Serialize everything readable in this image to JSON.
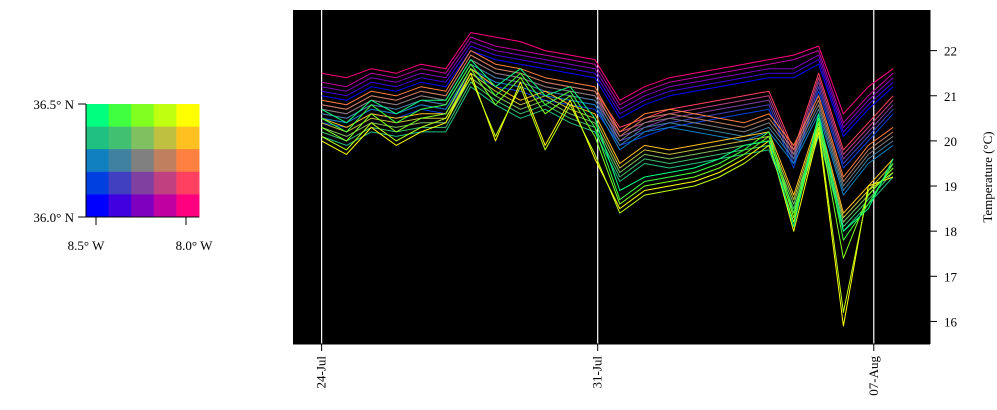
{
  "chart_data": [
    {
      "type": "heatmap",
      "description_role": "colour key grid",
      "rows": 5,
      "cols": 5,
      "cells": [
        [
          "#00ff7f",
          "#40ff40",
          "#80ff20",
          "#c0ff10",
          "#ffff00"
        ],
        [
          "#20c080",
          "#40c070",
          "#80c060",
          "#c0c040",
          "#ffc020"
        ],
        [
          "#1080c0",
          "#4080a0",
          "#808080",
          "#c08060",
          "#ff8040"
        ],
        [
          "#0040e0",
          "#4040c0",
          "#8040a0",
          "#c04080",
          "#ff4060"
        ],
        [
          "#0000ff",
          "#4000e0",
          "#8000c0",
          "#c000a0",
          "#ff0080"
        ]
      ],
      "x_ticks": [
        "8.5° W",
        "8.0° W"
      ],
      "y_ticks": [
        "36.5° N",
        "36.0° N"
      ]
    },
    {
      "type": "line",
      "background": "#000000",
      "ylabel": "Temperature (°C)",
      "ylim": [
        15.5,
        22.9
      ],
      "y_ticks": [
        16,
        17,
        18,
        19,
        20,
        21,
        22
      ],
      "x_range_days": [
        -1,
        22
      ],
      "x_ticks": [
        {
          "label": "24-Jul",
          "day": 0
        },
        {
          "label": "31-Jul",
          "day": 10
        },
        {
          "label": "07-Aug",
          "day": 20
        }
      ],
      "x_days": [
        0,
        0.9,
        1.8,
        2.7,
        3.6,
        4.5,
        5.4,
        6.3,
        7.2,
        8.1,
        9,
        9.9,
        10.8,
        11.7,
        12.6,
        13.5,
        14.4,
        15.3,
        16.2,
        17.1,
        18,
        18.9,
        19.8,
        20.7
      ],
      "series": [
        {
          "color": "#ff0080",
          "values": [
            21.5,
            21.4,
            21.6,
            21.5,
            21.7,
            21.6,
            22.4,
            22.3,
            22.2,
            22.0,
            21.9,
            21.8,
            20.9,
            21.2,
            21.4,
            21.5,
            21.6,
            21.7,
            21.8,
            21.9,
            22.1,
            20.6,
            21.2,
            21.6
          ]
        },
        {
          "color": "#c000a0",
          "values": [
            21.3,
            21.2,
            21.5,
            21.4,
            21.6,
            21.5,
            22.3,
            22.1,
            22.0,
            21.9,
            21.8,
            21.7,
            20.8,
            21.1,
            21.3,
            21.4,
            21.5,
            21.6,
            21.7,
            21.8,
            22.0,
            20.4,
            21.0,
            21.5
          ]
        },
        {
          "color": "#8000c0",
          "values": [
            21.2,
            21.1,
            21.4,
            21.3,
            21.5,
            21.4,
            22.2,
            22.0,
            21.9,
            21.8,
            21.7,
            21.6,
            20.7,
            21.0,
            21.2,
            21.3,
            21.4,
            21.5,
            21.6,
            21.6,
            21.9,
            20.3,
            20.9,
            21.4
          ]
        },
        {
          "color": "#4000e0",
          "values": [
            21.1,
            21.0,
            21.3,
            21.2,
            21.4,
            21.3,
            22.1,
            21.9,
            21.8,
            21.7,
            21.6,
            21.5,
            20.6,
            20.9,
            21.1,
            21.2,
            21.3,
            21.4,
            21.5,
            21.5,
            21.8,
            20.2,
            20.8,
            21.3
          ]
        },
        {
          "color": "#0000ff",
          "values": [
            21.0,
            20.9,
            21.2,
            21.1,
            21.3,
            21.2,
            22.0,
            21.8,
            21.7,
            21.6,
            21.5,
            21.4,
            20.5,
            20.8,
            21.0,
            21.1,
            21.2,
            21.3,
            21.4,
            21.4,
            21.7,
            20.1,
            20.7,
            21.2
          ]
        },
        {
          "color": "#ff4060",
          "values": [
            20.8,
            20.7,
            21.0,
            20.9,
            21.1,
            21.0,
            21.9,
            21.6,
            21.5,
            21.3,
            21.2,
            21.1,
            20.3,
            20.5,
            20.7,
            20.8,
            20.9,
            21.0,
            21.1,
            19.8,
            21.5,
            19.8,
            20.4,
            21.0
          ]
        },
        {
          "color": "#c04080",
          "values": [
            20.7,
            20.6,
            20.9,
            20.8,
            21.0,
            20.9,
            21.8,
            21.5,
            21.4,
            21.2,
            21.1,
            21.0,
            20.2,
            20.4,
            20.6,
            20.7,
            20.8,
            20.9,
            21.0,
            19.7,
            21.4,
            19.7,
            20.3,
            20.9
          ]
        },
        {
          "color": "#8040a0",
          "values": [
            20.6,
            20.5,
            20.8,
            20.7,
            20.9,
            20.8,
            21.7,
            21.4,
            21.3,
            21.1,
            21.0,
            20.9,
            20.1,
            20.3,
            20.5,
            20.6,
            20.7,
            20.8,
            20.9,
            19.6,
            21.3,
            19.6,
            20.2,
            20.8
          ]
        },
        {
          "color": "#4040c0",
          "values": [
            20.5,
            20.4,
            20.7,
            20.6,
            20.8,
            20.7,
            21.6,
            21.3,
            21.2,
            21.0,
            20.9,
            20.8,
            20.0,
            20.2,
            20.4,
            20.5,
            20.6,
            20.7,
            20.8,
            19.5,
            21.2,
            19.5,
            20.1,
            20.7
          ]
        },
        {
          "color": "#0040e0",
          "values": [
            20.4,
            20.3,
            20.6,
            20.5,
            20.7,
            20.6,
            21.5,
            21.2,
            21.1,
            20.9,
            20.8,
            20.7,
            19.9,
            20.1,
            20.3,
            20.4,
            20.5,
            20.6,
            20.7,
            19.4,
            21.1,
            19.4,
            20.0,
            20.6
          ]
        },
        {
          "color": "#ff8040",
          "values": [
            20.9,
            20.8,
            21.1,
            21.0,
            21.2,
            21.1,
            22.0,
            21.7,
            21.6,
            21.4,
            21.3,
            21.2,
            20.2,
            20.6,
            20.7,
            20.6,
            20.5,
            20.4,
            20.6,
            19.9,
            21.0,
            19.2,
            19.9,
            20.3
          ]
        },
        {
          "color": "#c08060",
          "values": [
            20.8,
            20.7,
            21.0,
            20.9,
            21.1,
            21.0,
            21.9,
            21.6,
            21.5,
            21.3,
            21.2,
            21.1,
            20.1,
            20.5,
            20.6,
            20.5,
            20.4,
            20.3,
            20.5,
            19.8,
            20.9,
            19.1,
            19.8,
            20.2
          ]
        },
        {
          "color": "#808080",
          "values": [
            20.7,
            20.6,
            20.9,
            20.8,
            21.0,
            20.9,
            21.8,
            21.5,
            21.4,
            21.2,
            21.1,
            21.0,
            20.0,
            20.4,
            20.5,
            20.4,
            20.3,
            20.2,
            20.4,
            19.7,
            20.8,
            19.0,
            19.7,
            20.1
          ]
        },
        {
          "color": "#4080a0",
          "values": [
            20.6,
            20.5,
            20.8,
            20.7,
            20.9,
            20.8,
            21.7,
            21.4,
            21.3,
            21.1,
            21.0,
            20.9,
            19.9,
            20.3,
            20.4,
            20.3,
            20.2,
            20.1,
            20.3,
            19.6,
            20.7,
            18.9,
            19.6,
            20.0
          ]
        },
        {
          "color": "#1080c0",
          "values": [
            20.5,
            20.4,
            20.7,
            20.6,
            20.8,
            20.7,
            21.6,
            21.3,
            21.2,
            21.0,
            20.9,
            20.8,
            19.8,
            20.2,
            20.3,
            20.2,
            20.1,
            20.0,
            20.2,
            19.5,
            20.6,
            18.8,
            19.5,
            19.9
          ]
        },
        {
          "color": "#ffc020",
          "values": [
            20.5,
            20.3,
            20.6,
            20.5,
            20.6,
            20.6,
            21.6,
            21.2,
            20.9,
            21.1,
            20.8,
            20.6,
            19.5,
            19.9,
            19.8,
            19.9,
            20.0,
            20.1,
            20.2,
            18.8,
            20.5,
            18.4,
            19.0,
            19.6
          ]
        },
        {
          "color": "#c0c040",
          "values": [
            20.4,
            20.2,
            20.5,
            20.4,
            20.5,
            20.5,
            21.5,
            21.1,
            20.8,
            21.0,
            20.7,
            20.5,
            19.4,
            19.8,
            19.7,
            19.8,
            19.9,
            20.0,
            20.1,
            18.7,
            20.4,
            18.3,
            18.9,
            19.5
          ]
        },
        {
          "color": "#80c060",
          "values": [
            20.3,
            20.1,
            20.4,
            20.3,
            20.4,
            20.4,
            21.4,
            21.0,
            20.7,
            20.9,
            20.6,
            20.4,
            19.3,
            19.7,
            19.6,
            19.7,
            19.8,
            19.9,
            20.0,
            18.6,
            20.3,
            18.2,
            18.8,
            19.4
          ]
        },
        {
          "color": "#40c070",
          "values": [
            20.2,
            20.0,
            20.3,
            20.2,
            20.3,
            20.3,
            21.3,
            20.9,
            20.6,
            20.8,
            20.5,
            20.3,
            19.2,
            19.6,
            19.5,
            19.6,
            19.7,
            19.8,
            19.9,
            18.5,
            20.2,
            18.1,
            18.7,
            19.3
          ]
        },
        {
          "color": "#20c080",
          "values": [
            20.1,
            19.9,
            20.2,
            20.1,
            20.2,
            20.2,
            21.2,
            20.8,
            20.5,
            20.7,
            20.4,
            20.2,
            19.1,
            19.5,
            19.4,
            19.5,
            19.6,
            19.7,
            19.8,
            18.4,
            20.1,
            18.0,
            18.6,
            19.2
          ]
        },
        {
          "color": "#ffff00",
          "values": [
            20.0,
            19.7,
            20.3,
            19.9,
            20.2,
            20.4,
            21.5,
            20.0,
            21.3,
            19.9,
            20.9,
            19.6,
            18.5,
            18.9,
            19.0,
            19.1,
            19.3,
            19.6,
            20.0,
            18.0,
            20.2,
            15.9,
            19.0,
            19.2
          ]
        },
        {
          "color": "#c0ff10",
          "values": [
            20.1,
            19.8,
            20.4,
            20.0,
            20.3,
            20.5,
            21.4,
            20.1,
            21.2,
            19.8,
            20.8,
            19.7,
            18.4,
            18.8,
            18.9,
            19.0,
            19.2,
            19.5,
            19.9,
            18.2,
            20.3,
            16.2,
            18.9,
            19.3
          ]
        },
        {
          "color": "#80ff20",
          "values": [
            20.3,
            20.0,
            20.6,
            20.2,
            20.5,
            20.6,
            21.6,
            20.8,
            21.4,
            20.6,
            21.0,
            20.1,
            18.6,
            19.0,
            19.1,
            19.2,
            19.4,
            19.7,
            20.1,
            18.3,
            20.4,
            17.4,
            18.8,
            19.4
          ]
        },
        {
          "color": "#40ff40",
          "values": [
            20.5,
            20.2,
            20.8,
            20.4,
            20.7,
            20.8,
            21.7,
            21.0,
            21.5,
            20.8,
            21.1,
            20.3,
            18.7,
            19.1,
            19.2,
            19.3,
            19.5,
            19.8,
            20.2,
            18.4,
            20.5,
            17.8,
            18.6,
            19.5
          ]
        },
        {
          "color": "#00ff7f",
          "values": [
            20.7,
            20.4,
            20.9,
            20.6,
            20.9,
            20.9,
            21.8,
            21.2,
            21.6,
            21.0,
            21.2,
            20.5,
            18.9,
            19.2,
            19.3,
            19.4,
            19.6,
            19.9,
            20.0,
            18.1,
            20.6,
            18.0,
            18.5,
            19.6
          ]
        }
      ]
    }
  ]
}
